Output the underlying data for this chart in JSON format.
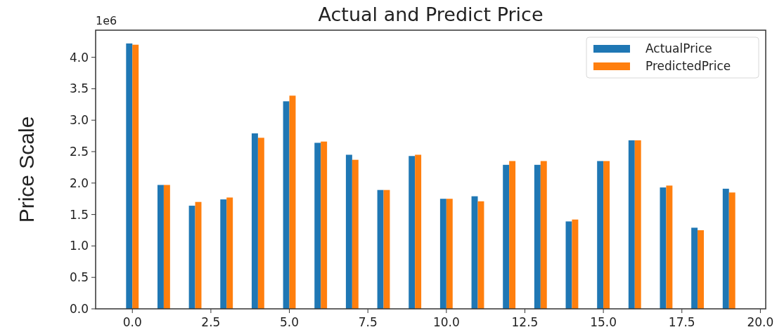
{
  "chart_data": {
    "type": "bar",
    "title": "Actual and Predict Price",
    "ylabel": "Price Scale",
    "annotations": [
      "1e6"
    ],
    "x": [
      0,
      1,
      2,
      3,
      4,
      5,
      6,
      7,
      8,
      9,
      10,
      11,
      12,
      13,
      14,
      15,
      16,
      17,
      18,
      19
    ],
    "series": [
      {
        "name": "ActualPrice",
        "color": "#1f77b4",
        "values": [
          4.22,
          1.97,
          1.64,
          1.74,
          2.79,
          3.3,
          2.64,
          2.45,
          1.89,
          2.43,
          1.75,
          1.79,
          2.29,
          2.29,
          1.39,
          2.35,
          2.68,
          1.93,
          1.29,
          1.91
        ]
      },
      {
        "name": "PredictedPrice",
        "color": "#ff7f0e",
        "values": [
          4.2,
          1.97,
          1.7,
          1.77,
          2.72,
          3.39,
          2.66,
          2.37,
          1.89,
          2.45,
          1.75,
          1.71,
          2.35,
          2.35,
          1.42,
          2.35,
          2.68,
          1.96,
          1.25,
          1.85
        ]
      }
    ],
    "xlim": [
      -1.17,
      20.17
    ],
    "xticks": [
      {
        "value": 0,
        "label": "0.0"
      },
      2.5,
      {
        "value": 5,
        "label": "5.0"
      },
      7.5,
      {
        "value": 10,
        "label": "10.0"
      },
      12.5,
      {
        "value": 15,
        "label": "15.0"
      },
      17.5,
      {
        "value": 20,
        "label": "20.0"
      }
    ],
    "ylim": [
      0,
      4.431
    ],
    "yticks": [
      {
        "value": 0,
        "label": "0.0"
      },
      0.5,
      {
        "value": 1,
        "label": "1.0"
      },
      1.5,
      {
        "value": 2,
        "label": "2.0"
      },
      2.5,
      {
        "value": 3,
        "label": "3.0"
      },
      3.5,
      {
        "value": 4,
        "label": "4.0"
      }
    ],
    "legend": "top right"
  }
}
